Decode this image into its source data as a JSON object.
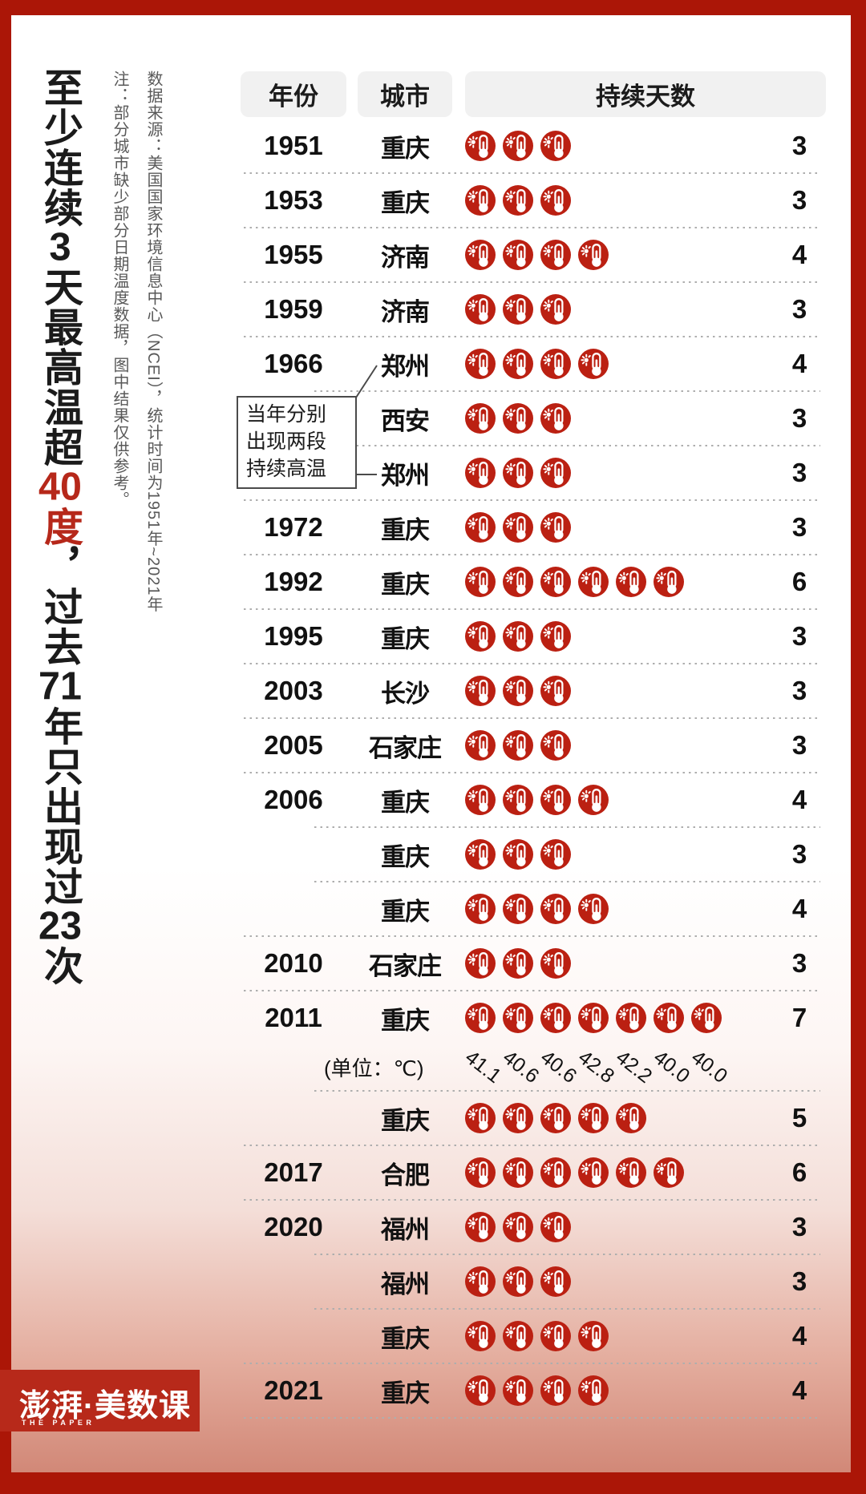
{
  "colors": {
    "accent_red": "#b6281a",
    "icon_red": "#bb2012",
    "frame_red": "#ab1607",
    "logo_red": "#b7291a",
    "note_gray": "#595959",
    "separator_gray": "#aeaeae",
    "header_bg": "#f1f1f1"
  },
  "title": {
    "full_text": "至少连续3天最高温超40度，过去71年只出现过23次",
    "segments": [
      {
        "t": "至少连续"
      },
      {
        "t": "3",
        "digits": true
      },
      {
        "t": "天最高温超"
      },
      {
        "t": "40",
        "digits": true,
        "red": true
      },
      {
        "t": "度",
        "red": true
      },
      {
        "t": "，过去"
      },
      {
        "t": "71",
        "digits": true
      },
      {
        "t": "年只出现过"
      },
      {
        "t": "23",
        "digits": true
      },
      {
        "t": "次"
      }
    ]
  },
  "notes": {
    "source": "数据来源：美国国家环境信息中心（NCEI），统计时间为1951年~2021年",
    "disclaimer": "注：部分城市缺少部分日期温度数据，图中结果仅供参考。"
  },
  "header": {
    "year": "年份",
    "city": "城市",
    "days": "持续天数"
  },
  "annotation": {
    "text": "当年分别\n出现两段\n持续高温"
  },
  "unit_label": "(单位：℃)",
  "temps": [
    "41.1",
    "40.6",
    "40.6",
    "42.8",
    "42.2",
    "40.0",
    "40.0"
  ],
  "icon": {
    "name": "thermometer-sun-icon"
  },
  "table": {
    "rows": [
      {
        "year": "1951",
        "city": "重庆",
        "days": 3,
        "sep": "full"
      },
      {
        "year": "1953",
        "city": "重庆",
        "days": 3,
        "sep": "full"
      },
      {
        "year": "1955",
        "city": "济南",
        "days": 4,
        "sep": "full"
      },
      {
        "year": "1959",
        "city": "济南",
        "days": 3,
        "sep": "full"
      },
      {
        "year": "1966",
        "city": "郑州",
        "days": 4,
        "sep": "short"
      },
      {
        "year": "",
        "city": "西安",
        "days": 3,
        "sep": "short"
      },
      {
        "year": "",
        "city": "郑州",
        "days": 3,
        "sep": "full"
      },
      {
        "year": "1972",
        "city": "重庆",
        "days": 3,
        "sep": "full"
      },
      {
        "year": "1992",
        "city": "重庆",
        "days": 6,
        "sep": "full"
      },
      {
        "year": "1995",
        "city": "重庆",
        "days": 3,
        "sep": "full"
      },
      {
        "year": "2003",
        "city": "长沙",
        "days": 3,
        "sep": "full"
      },
      {
        "year": "2005",
        "city": "石家庄",
        "days": 3,
        "sep": "full"
      },
      {
        "year": "2006",
        "city": "重庆",
        "days": 4,
        "sep": "short"
      },
      {
        "year": "",
        "city": "重庆",
        "days": 3,
        "sep": "short"
      },
      {
        "year": "",
        "city": "重庆",
        "days": 4,
        "sep": "full"
      },
      {
        "year": "2010",
        "city": "石家庄",
        "days": 3,
        "sep": "full"
      },
      {
        "year": "2011",
        "city": "重庆",
        "days": 7,
        "sep": "short",
        "temps_after": true
      },
      {
        "year": "",
        "city": "重庆",
        "days": 5,
        "sep": "full"
      },
      {
        "year": "2017",
        "city": "合肥",
        "days": 6,
        "sep": "full"
      },
      {
        "year": "2020",
        "city": "福州",
        "days": 3,
        "sep": "short"
      },
      {
        "year": "",
        "city": "福州",
        "days": 3,
        "sep": "short"
      },
      {
        "year": "",
        "city": "重庆",
        "days": 4,
        "sep": "full"
      },
      {
        "year": "2021",
        "city": "重庆",
        "days": 4,
        "sep": "full"
      }
    ]
  },
  "logo": {
    "main": "澎湃·美数课",
    "sub": "THE PAPER"
  },
  "chart_data": {
    "type": "table",
    "title": "至少连续3天最高温超40度，过去71年只出现过23次",
    "columns": [
      "年份",
      "城市",
      "持续天数"
    ],
    "rows": [
      [
        "1951",
        "重庆",
        3
      ],
      [
        "1953",
        "重庆",
        3
      ],
      [
        "1955",
        "济南",
        4
      ],
      [
        "1959",
        "济南",
        3
      ],
      [
        "1966",
        "郑州",
        4
      ],
      [
        "1966",
        "西安",
        3
      ],
      [
        "1966",
        "郑州",
        3
      ],
      [
        "1972",
        "重庆",
        3
      ],
      [
        "1992",
        "重庆",
        6
      ],
      [
        "1995",
        "重庆",
        3
      ],
      [
        "2003",
        "长沙",
        3
      ],
      [
        "2005",
        "石家庄",
        3
      ],
      [
        "2006",
        "重庆",
        4
      ],
      [
        "2006",
        "重庆",
        3
      ],
      [
        "2006",
        "重庆",
        4
      ],
      [
        "2010",
        "石家庄",
        3
      ],
      [
        "2011",
        "重庆",
        7
      ],
      [
        "2011",
        "重庆",
        5
      ],
      [
        "2017",
        "合肥",
        6
      ],
      [
        "2020",
        "福州",
        3
      ],
      [
        "2020",
        "福州",
        3
      ],
      [
        "2020",
        "重庆",
        4
      ],
      [
        "2021",
        "重庆",
        4
      ]
    ],
    "unit": "℃",
    "temps_2011": [
      41.1,
      40.6,
      40.6,
      42.8,
      42.2,
      40.0,
      40.0
    ],
    "annotation": "当年分别出现两段持续高温",
    "notes": [
      "数据来源：美国国家环境信息中心（NCEI），统计时间为1951年~2021年",
      "注：部分城市缺少部分日期温度数据，图中结果仅供参考。"
    ],
    "legend_position": "none",
    "grid": "dotted-row-separators"
  }
}
